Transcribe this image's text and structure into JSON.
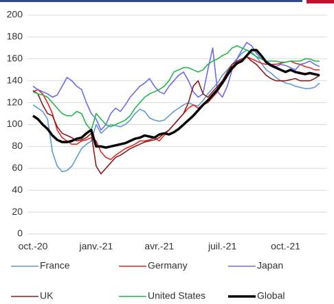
{
  "chart_data": {
    "type": "line",
    "categories": [
      "oct.-20",
      null,
      null,
      null,
      null,
      null,
      null,
      null,
      null,
      null,
      null,
      null,
      null,
      "janv.-21",
      null,
      null,
      null,
      null,
      null,
      null,
      null,
      null,
      null,
      null,
      null,
      null,
      "avr.-21",
      null,
      null,
      null,
      null,
      null,
      null,
      null,
      null,
      null,
      null,
      null,
      null,
      "juil.-21",
      null,
      null,
      null,
      null,
      null,
      null,
      null,
      null,
      null,
      null,
      null,
      null,
      "oct.-21",
      null,
      null,
      null,
      null,
      null,
      null,
      null
    ],
    "ylim": [
      0,
      200
    ],
    "yticks": [
      0,
      20,
      40,
      60,
      80,
      100,
      120,
      140,
      160,
      180,
      200
    ],
    "grid": true,
    "series": [
      {
        "name": "France",
        "color": "#5b9bd5",
        "width": 1.6,
        "values": [
          118,
          115,
          112,
          105,
          75,
          62,
          57,
          58,
          62,
          70,
          78,
          82,
          85,
          100,
          92,
          96,
          100,
          99,
          98,
          100,
          104,
          110,
          114,
          112,
          106,
          104,
          103,
          104,
          108,
          112,
          115,
          118,
          120,
          118,
          117,
          122,
          128,
          133,
          138,
          145,
          150,
          155,
          160,
          165,
          168,
          166,
          162,
          156,
          150,
          147,
          143,
          140,
          138,
          137,
          135,
          134,
          133,
          133,
          134,
          138
        ]
      },
      {
        "name": "Germany",
        "color": "#e8251f",
        "width": 1.6,
        "values": [
          130,
          132,
          128,
          120,
          110,
          95,
          88,
          85,
          82,
          82,
          85,
          86,
          88,
          85,
          75,
          70,
          68,
          72,
          75,
          78,
          80,
          82,
          85,
          85,
          86,
          88,
          85,
          90,
          95,
          100,
          105,
          110,
          115,
          118,
          115,
          118,
          120,
          125,
          130,
          138,
          145,
          150,
          155,
          158,
          162,
          160,
          158,
          156,
          155,
          155,
          155,
          156,
          157,
          158,
          156,
          155,
          153,
          152,
          150,
          150
        ]
      },
      {
        "name": "Japan",
        "color": "#6b6bf0",
        "width": 1.6,
        "values": [
          135,
          132,
          130,
          128,
          125,
          127,
          135,
          143,
          140,
          135,
          132,
          120,
          110,
          105,
          95,
          100,
          110,
          115,
          112,
          118,
          125,
          130,
          135,
          138,
          142,
          135,
          130,
          128,
          135,
          140,
          145,
          148,
          140,
          130,
          125,
          128,
          150,
          170,
          130,
          125,
          135,
          150,
          160,
          168,
          175,
          172,
          165,
          160,
          158,
          155,
          153,
          155,
          154,
          152,
          150,
          155,
          156,
          158,
          155,
          153
        ]
      },
      {
        "name": "UK",
        "color": "#8b1a1a",
        "width": 1.6,
        "values": [
          131,
          128,
          118,
          110,
          108,
          98,
          92,
          90,
          88,
          85,
          86,
          88,
          92,
          62,
          55,
          60,
          65,
          70,
          72,
          75,
          78,
          80,
          82,
          84,
          85,
          86,
          88,
          92,
          95,
          100,
          105,
          110,
          120,
          135,
          140,
          128,
          125,
          130,
          135,
          140,
          148,
          155,
          158,
          160,
          162,
          158,
          155,
          150,
          145,
          142,
          140,
          140,
          140,
          141,
          142,
          140,
          140,
          140,
          142,
          145
        ]
      },
      {
        "name": "United States",
        "color": "#1fb84a",
        "width": 1.6,
        "values": [
          130,
          128,
          127,
          125,
          120,
          115,
          110,
          108,
          108,
          112,
          110,
          100,
          95,
          110,
          105,
          100,
          98,
          100,
          102,
          104,
          108,
          115,
          120,
          125,
          128,
          130,
          132,
          135,
          140,
          148,
          150,
          152,
          152,
          150,
          148,
          150,
          155,
          158,
          160,
          163,
          165,
          170,
          172,
          170,
          168,
          165,
          162,
          160,
          158,
          158,
          158,
          157,
          157,
          158,
          158,
          158,
          160,
          160,
          158,
          158
        ]
      },
      {
        "name": "Global",
        "color": "#000000",
        "width": 3.5,
        "values": [
          108,
          105,
          100,
          96,
          90,
          86,
          84,
          84,
          85,
          87,
          88,
          92,
          95,
          80,
          80,
          79,
          80,
          81,
          82,
          83,
          85,
          87,
          88,
          90,
          89,
          88,
          91,
          92,
          91,
          93,
          96,
          100,
          104,
          108,
          113,
          118,
          122,
          127,
          132,
          138,
          145,
          152,
          156,
          158,
          163,
          168,
          168,
          163,
          157,
          154,
          152,
          150,
          148,
          150,
          148,
          147,
          146,
          147,
          146,
          145
        ]
      }
    ]
  }
}
